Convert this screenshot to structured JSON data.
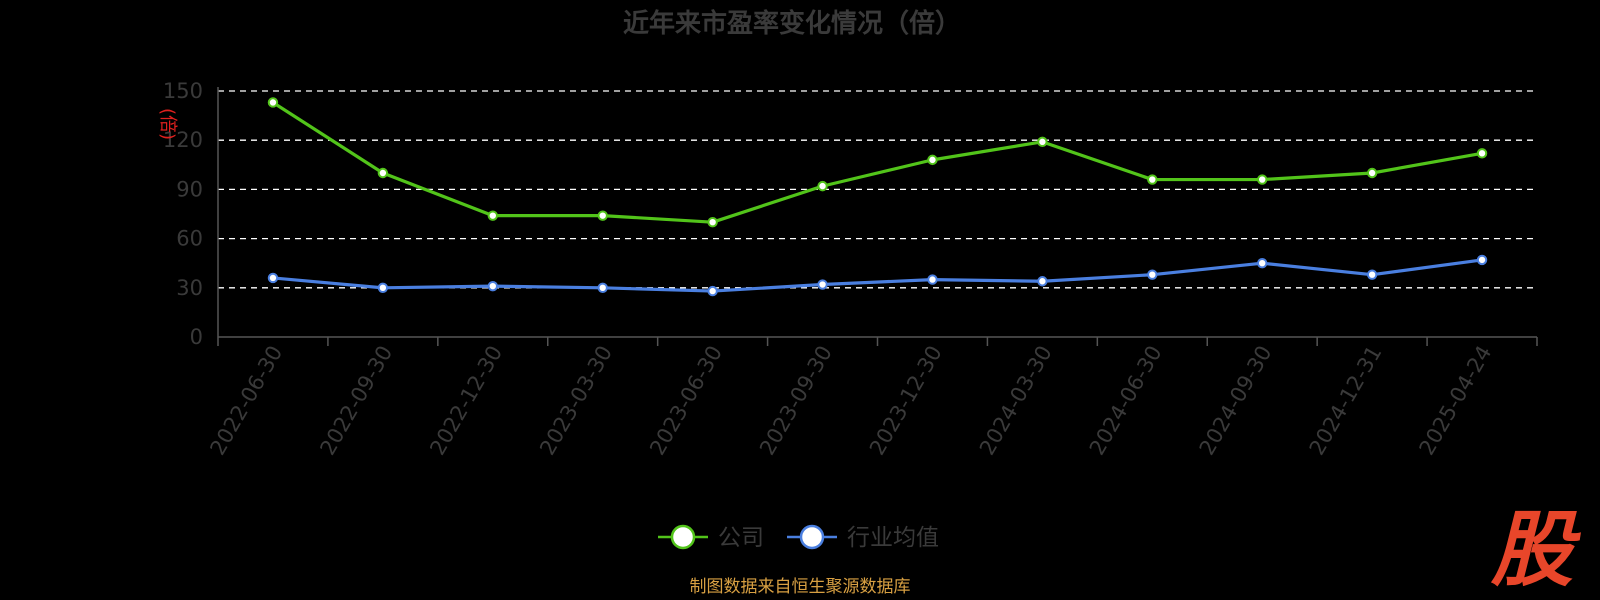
{
  "chart_data": {
    "type": "line",
    "title": "近年来市盈率变化情况（倍）",
    "ylabel": "(倍)",
    "xlabel": "",
    "categories": [
      "2022-06-30",
      "2022-09-30",
      "2022-12-30",
      "2023-03-30",
      "2023-06-30",
      "2023-09-30",
      "2023-12-30",
      "2024-03-30",
      "2024-06-30",
      "2024-09-30",
      "2024-12-31",
      "2025-04-24"
    ],
    "yticks": [
      "0",
      "30",
      "60",
      "90",
      "120",
      "150"
    ],
    "ylim": [
      0,
      150
    ],
    "grid": "horizontal dashed",
    "legend_position": "bottom-center",
    "series": [
      {
        "name": "公司",
        "color": "#52c41a",
        "values": [
          143,
          100,
          74,
          74,
          70,
          92,
          108,
          119,
          96,
          96,
          100,
          112
        ]
      },
      {
        "name": "行业均值",
        "color": "#4a7fe0",
        "values": [
          36,
          30,
          31,
          30,
          28,
          32,
          35,
          34,
          38,
          45,
          38,
          47
        ]
      }
    ]
  },
  "source_note": "制图数据来自恒生聚源数据库",
  "watermark": "股",
  "colors": {
    "background": "#000000",
    "text": "#3a3a3a",
    "grid": "#ffffff",
    "axis": "#555555",
    "unit": "#e0201e",
    "source": "#d8a042",
    "watermark": "#e8462a"
  }
}
